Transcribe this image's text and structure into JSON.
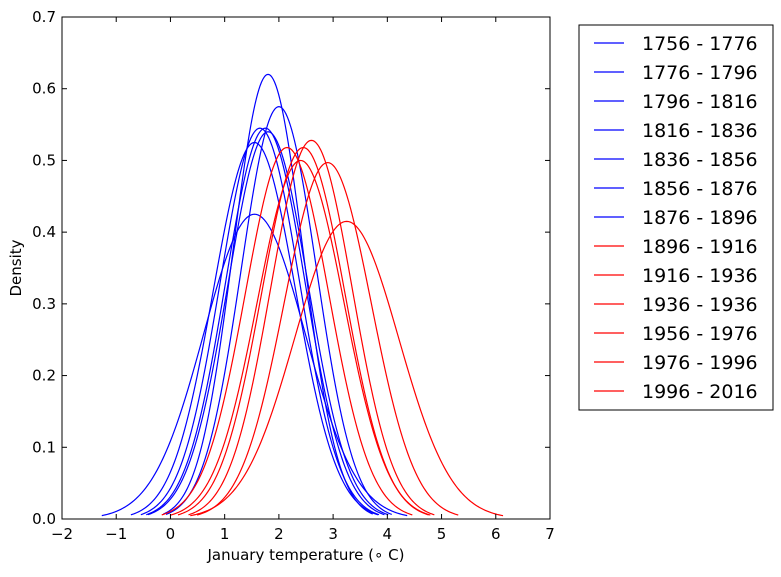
{
  "chart_data": {
    "type": "line",
    "title": "",
    "xlabel": "January temperature ($^\\circ$ C)",
    "xlabel_display": "January temperature (∘ C)",
    "ylabel": "Density",
    "xlim": [
      -2,
      7
    ],
    "ylim": [
      0,
      0.7
    ],
    "xticks": [
      -2,
      -1,
      0,
      1,
      2,
      3,
      4,
      5,
      6,
      7
    ],
    "xtick_labels": [
      "−2",
      "−1",
      "0",
      "1",
      "2",
      "3",
      "4",
      "5",
      "6",
      "7"
    ],
    "yticks": [
      0.0,
      0.1,
      0.2,
      0.3,
      0.4,
      0.5,
      0.6,
      0.7
    ],
    "ytick_labels": [
      "0.0",
      "0.1",
      "0.2",
      "0.3",
      "0.4",
      "0.5",
      "0.6",
      "0.7"
    ],
    "grid": false,
    "legend_position": "outside-right",
    "curve_shape": "normal density curve per period, drawn over mean ± 3 standard deviations",
    "series": [
      {
        "name": "1756 - 1776",
        "color": "#0000ff",
        "mean": 1.55,
        "peak_density": 0.425
      },
      {
        "name": "1776 - 1796",
        "color": "#0000ff",
        "mean": 1.55,
        "peak_density": 0.525
      },
      {
        "name": "1796 - 1816",
        "color": "#0000ff",
        "mean": 1.65,
        "peak_density": 0.545
      },
      {
        "name": "1816 - 1836",
        "color": "#0000ff",
        "mean": 1.75,
        "peak_density": 0.545
      },
      {
        "name": "1836 - 1856",
        "color": "#0000ff",
        "mean": 1.8,
        "peak_density": 0.62
      },
      {
        "name": "1856 - 1876",
        "color": "#0000ff",
        "mean": 1.8,
        "peak_density": 0.54
      },
      {
        "name": "1876 - 1896",
        "color": "#0000ff",
        "mean": 2.0,
        "peak_density": 0.575
      },
      {
        "name": "1896 - 1916",
        "color": "#ff0000",
        "mean": 2.15,
        "peak_density": 0.518
      },
      {
        "name": "1916 - 1936",
        "color": "#ff0000",
        "mean": 2.45,
        "peak_density": 0.518
      },
      {
        "name": "1936 - 1936",
        "color": "#ff0000",
        "mean": 2.4,
        "peak_density": 0.5
      },
      {
        "name": "1956 - 1976",
        "color": "#ff0000",
        "mean": 2.6,
        "peak_density": 0.528
      },
      {
        "name": "1976 - 1996",
        "color": "#ff0000",
        "mean": 2.9,
        "peak_density": 0.497
      },
      {
        "name": "1996 - 2016",
        "color": "#ff0000",
        "mean": 3.25,
        "peak_density": 0.415
      }
    ]
  }
}
